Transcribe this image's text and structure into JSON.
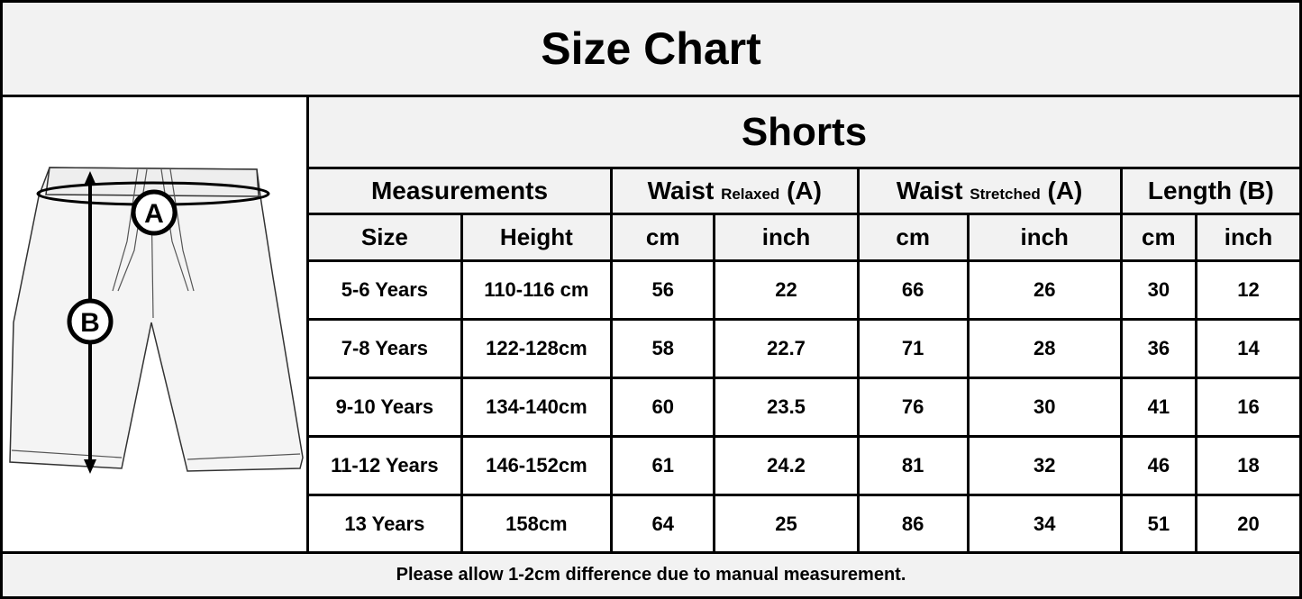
{
  "title": "Size Chart",
  "product": "Shorts",
  "diagram": {
    "label_a": "A",
    "label_b": "B"
  },
  "groups": [
    {
      "label": "Measurements",
      "sub": ""
    },
    {
      "label": "Waist",
      "sub": "Relaxed",
      "suffix": "(A)"
    },
    {
      "label": "Waist",
      "sub": "Stretched",
      "suffix": "(A)"
    },
    {
      "label": "Length (B)",
      "sub": ""
    }
  ],
  "columns": [
    "Size",
    "Height",
    "cm",
    "inch",
    "cm",
    "inch",
    "cm",
    "inch"
  ],
  "rows": [
    [
      "5-6 Years",
      "110-116 cm",
      "56",
      "22",
      "66",
      "26",
      "30",
      "12"
    ],
    [
      "7-8 Years",
      "122-128cm",
      "58",
      "22.7",
      "71",
      "28",
      "36",
      "14"
    ],
    [
      "9-10 Years",
      "134-140cm",
      "60",
      "23.5",
      "76",
      "30",
      "41",
      "16"
    ],
    [
      "11-12 Years",
      "146-152cm",
      "61",
      "24.2",
      "81",
      "32",
      "46",
      "18"
    ],
    [
      "13 Years",
      "158cm",
      "64",
      "25",
      "86",
      "34",
      "51",
      "20"
    ]
  ],
  "footer": "Please allow 1-2cm difference due to manual measurement."
}
